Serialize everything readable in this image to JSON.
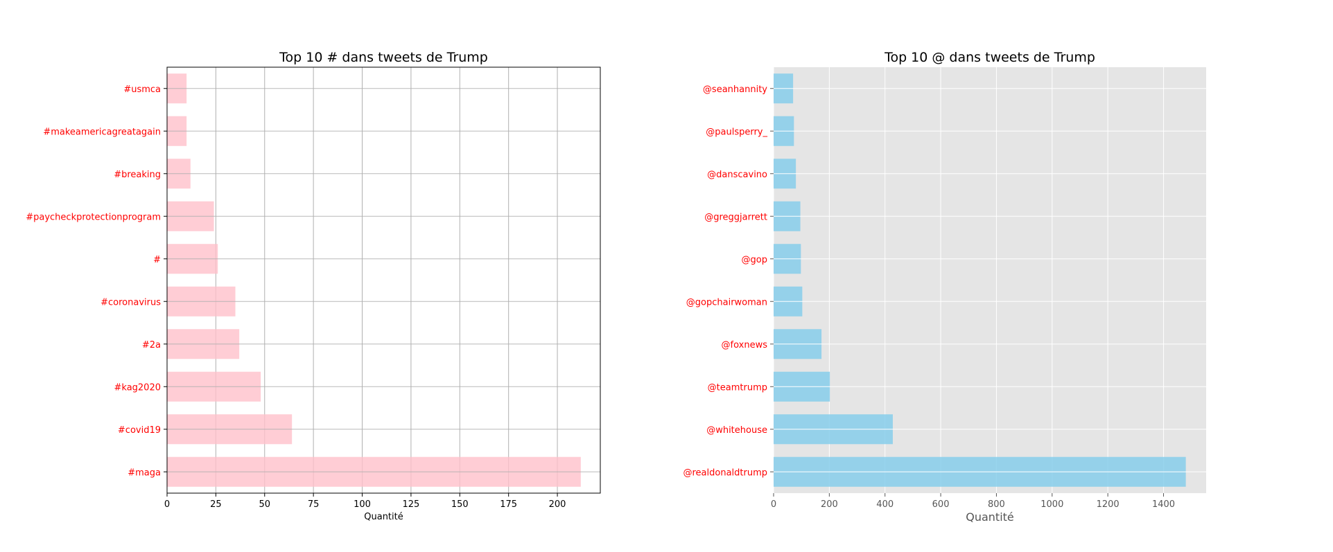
{
  "chart_data": [
    {
      "type": "bar",
      "orientation": "horizontal",
      "title": "Top 10 # dans tweets de Trump",
      "xlabel": "Quantité",
      "ylabel": "",
      "categories": [
        "#maga",
        "#covid19",
        "#kag2020",
        "#2a",
        "#coronavirus",
        "#",
        "#paycheckprotectionprogram",
        "#breaking",
        "#makeamericagreatagain",
        "#usmca"
      ],
      "values": [
        212,
        64,
        48,
        37,
        35,
        26,
        24,
        12,
        10,
        10
      ],
      "xlim": [
        0,
        222
      ],
      "xticks": [
        0,
        25,
        50,
        75,
        100,
        125,
        150,
        175,
        200
      ],
      "grid": true,
      "style": "classic",
      "bar_color": "#ffc0cb",
      "tick_label_color": "#ff0000"
    },
    {
      "type": "bar",
      "orientation": "horizontal",
      "title": "Top 10 @ dans tweets de Trump",
      "xlabel": "Quantité",
      "ylabel": "",
      "categories": [
        "@realdonaldtrump",
        "@whitehouse",
        "@teamtrump",
        "@foxnews",
        "@gopchairwoman",
        "@gop",
        "@greggjarrett",
        "@danscavino",
        "@paulsperry_",
        "@seanhannity"
      ],
      "values": [
        1480,
        428,
        202,
        172,
        103,
        98,
        96,
        80,
        73,
        70
      ],
      "xlim": [
        0,
        1553
      ],
      "xticks": [
        0,
        200,
        400,
        600,
        800,
        1000,
        1200,
        1400
      ],
      "grid": true,
      "style": "ggplot",
      "bar_color": "#87ceeb",
      "tick_label_color": "#ff0000"
    }
  ]
}
